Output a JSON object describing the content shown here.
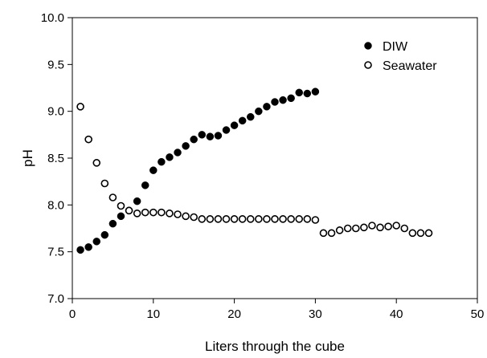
{
  "chart_data": {
    "type": "scatter",
    "title": "",
    "xlabel": "Liters through the cube",
    "ylabel": "pH",
    "xlim": [
      0,
      50
    ],
    "ylim": [
      7.0,
      10.0
    ],
    "xticks": [
      0,
      10,
      20,
      30,
      40,
      50
    ],
    "yticks": [
      7.0,
      7.5,
      8.0,
      8.5,
      9.0,
      9.5,
      10.0
    ],
    "xtick_labels": [
      "0",
      "10",
      "20",
      "30",
      "40",
      "50"
    ],
    "ytick_labels": [
      "7.0",
      "7.5",
      "8.0",
      "8.5",
      "9.0",
      "9.5",
      "10.0"
    ],
    "grid": false,
    "legend_position": "top-right",
    "series": [
      {
        "name": "DIW",
        "marker": "filled-circle",
        "color": "#000000",
        "x": [
          1,
          2,
          3,
          4,
          5,
          6,
          7,
          8,
          9,
          10,
          11,
          12,
          13,
          14,
          15,
          16,
          17,
          18,
          19,
          20,
          21,
          22,
          23,
          24,
          25,
          26,
          27,
          28,
          29,
          30
        ],
        "y": [
          7.52,
          7.55,
          7.61,
          7.68,
          7.8,
          7.88,
          7.94,
          8.04,
          8.21,
          8.37,
          8.46,
          8.51,
          8.56,
          8.63,
          8.7,
          8.75,
          8.73,
          8.74,
          8.8,
          8.85,
          8.9,
          8.94,
          9.0,
          9.05,
          9.1,
          9.12,
          9.14,
          9.2,
          9.19,
          9.21
        ]
      },
      {
        "name": "Seawater",
        "marker": "open-circle",
        "color": "#000000",
        "x": [
          1,
          2,
          3,
          4,
          5,
          6,
          7,
          8,
          9,
          10,
          11,
          12,
          13,
          14,
          15,
          16,
          17,
          18,
          19,
          20,
          21,
          22,
          23,
          24,
          25,
          26,
          27,
          28,
          29,
          30,
          31,
          32,
          33,
          34,
          35,
          36,
          37,
          38,
          39,
          40,
          41,
          42,
          43,
          44
        ],
        "y": [
          9.05,
          8.7,
          8.45,
          8.23,
          8.08,
          7.99,
          7.94,
          7.91,
          7.92,
          7.92,
          7.92,
          7.91,
          7.9,
          7.88,
          7.87,
          7.85,
          7.85,
          7.85,
          7.85,
          7.85,
          7.85,
          7.85,
          7.85,
          7.85,
          7.85,
          7.85,
          7.85,
          7.85,
          7.85,
          7.84,
          7.7,
          7.7,
          7.73,
          7.75,
          7.75,
          7.76,
          7.78,
          7.76,
          7.77,
          7.78,
          7.75,
          7.7,
          7.7,
          7.7
        ]
      }
    ]
  }
}
